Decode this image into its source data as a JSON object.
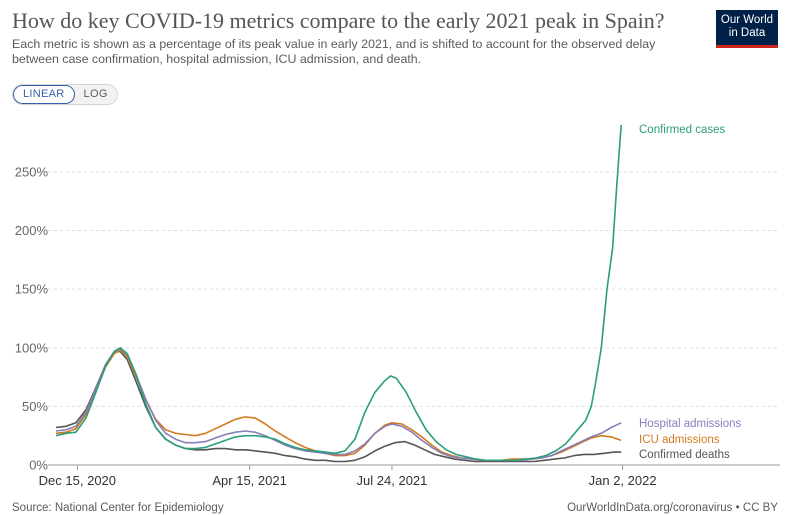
{
  "header": {
    "title": "How do key COVID-19 metrics compare to the early 2021 peak in Spain?",
    "subtitle": "Each metric is shown as a percentage of its peak value in early 2021, and is shifted to account for the observed delay between case confirmation, hospital admission, ICU admission, and death."
  },
  "logo": {
    "line1": "Our World",
    "line2": "in Data"
  },
  "scale_toggle": {
    "linear_label": "LINEAR",
    "log_label": "LOG",
    "selected": "LINEAR"
  },
  "footer": {
    "source": "Source: National Center for Epidemiology",
    "credit": "OurWorldInData.org/coronavirus • CC BY"
  },
  "colors": {
    "confirmed_cases": "#2b9e7a",
    "hospital_admissions": "#8a7dbb",
    "icu_admissions": "#d37a1f",
    "confirmed_deaths": "#555555",
    "gridline": "#dddddd"
  },
  "chart_data": {
    "type": "line",
    "y_unit": "%",
    "ylim": [
      0,
      290
    ],
    "y_ticks": [
      0,
      50,
      100,
      150,
      200,
      250
    ],
    "y_tick_labels": [
      "0%",
      "50%",
      "100%",
      "150%",
      "200%",
      "250%"
    ],
    "x_ticks": [
      "2020-12-15",
      "2021-04-15",
      "2021-07-24",
      "2022-01-02"
    ],
    "x_tick_labels": [
      "Dec 15, 2020",
      "Apr 15, 2021",
      "Jul 24, 2021",
      "Jan 2, 2022"
    ],
    "xlim": [
      "2020-11-30",
      "2022-01-10"
    ],
    "grid": "horizontal",
    "legend": "line-end labels",
    "series": [
      {
        "name": "Confirmed cases",
        "key": "confirmed_cases",
        "points": [
          [
            "2020-11-30",
            25
          ],
          [
            "2020-12-07",
            27
          ],
          [
            "2020-12-14",
            28
          ],
          [
            "2020-12-21",
            40
          ],
          [
            "2020-12-28",
            62
          ],
          [
            "2021-01-04",
            85
          ],
          [
            "2021-01-10",
            97
          ],
          [
            "2021-01-14",
            100
          ],
          [
            "2021-01-19",
            95
          ],
          [
            "2021-01-25",
            78
          ],
          [
            "2021-02-01",
            52
          ],
          [
            "2021-02-08",
            32
          ],
          [
            "2021-02-15",
            22
          ],
          [
            "2021-02-22",
            17
          ],
          [
            "2021-03-01",
            14
          ],
          [
            "2021-03-08",
            14
          ],
          [
            "2021-03-15",
            15
          ],
          [
            "2021-03-22",
            18
          ],
          [
            "2021-03-29",
            21
          ],
          [
            "2021-04-05",
            24
          ],
          [
            "2021-04-12",
            25
          ],
          [
            "2021-04-19",
            25
          ],
          [
            "2021-04-26",
            24
          ],
          [
            "2021-05-03",
            22
          ],
          [
            "2021-05-10",
            18
          ],
          [
            "2021-05-17",
            15
          ],
          [
            "2021-05-24",
            13
          ],
          [
            "2021-05-31",
            12
          ],
          [
            "2021-06-07",
            11
          ],
          [
            "2021-06-14",
            10
          ],
          [
            "2021-06-21",
            12
          ],
          [
            "2021-06-28",
            22
          ],
          [
            "2021-07-05",
            45
          ],
          [
            "2021-07-12",
            62
          ],
          [
            "2021-07-19",
            72
          ],
          [
            "2021-07-23",
            76
          ],
          [
            "2021-07-27",
            74
          ],
          [
            "2021-08-03",
            62
          ],
          [
            "2021-08-10",
            45
          ],
          [
            "2021-08-17",
            30
          ],
          [
            "2021-08-24",
            20
          ],
          [
            "2021-08-31",
            13
          ],
          [
            "2021-09-07",
            9
          ],
          [
            "2021-09-14",
            7
          ],
          [
            "2021-09-21",
            5
          ],
          [
            "2021-09-28",
            4
          ],
          [
            "2021-10-05",
            4
          ],
          [
            "2021-10-12",
            4
          ],
          [
            "2021-10-19",
            4
          ],
          [
            "2021-10-26",
            5
          ],
          [
            "2021-11-02",
            6
          ],
          [
            "2021-11-09",
            8
          ],
          [
            "2021-11-16",
            12
          ],
          [
            "2021-11-23",
            18
          ],
          [
            "2021-11-30",
            28
          ],
          [
            "2021-12-07",
            38
          ],
          [
            "2021-12-11",
            50
          ],
          [
            "2021-12-14",
            70
          ],
          [
            "2021-12-18",
            100
          ],
          [
            "2021-12-22",
            150
          ],
          [
            "2021-12-26",
            185
          ],
          [
            "2021-12-29",
            240
          ],
          [
            "2022-01-01",
            290
          ]
        ]
      },
      {
        "name": "Hospital admissions",
        "key": "hospital_admissions",
        "points": [
          [
            "2020-11-30",
            29
          ],
          [
            "2020-12-07",
            30
          ],
          [
            "2020-12-14",
            33
          ],
          [
            "2020-12-21",
            45
          ],
          [
            "2020-12-28",
            65
          ],
          [
            "2021-01-04",
            86
          ],
          [
            "2021-01-10",
            97
          ],
          [
            "2021-01-14",
            99
          ],
          [
            "2021-01-19",
            94
          ],
          [
            "2021-01-25",
            78
          ],
          [
            "2021-02-01",
            56
          ],
          [
            "2021-02-08",
            38
          ],
          [
            "2021-02-15",
            27
          ],
          [
            "2021-02-22",
            22
          ],
          [
            "2021-03-01",
            19
          ],
          [
            "2021-03-08",
            19
          ],
          [
            "2021-03-15",
            20
          ],
          [
            "2021-03-22",
            23
          ],
          [
            "2021-03-29",
            26
          ],
          [
            "2021-04-05",
            28
          ],
          [
            "2021-04-12",
            29
          ],
          [
            "2021-04-19",
            28
          ],
          [
            "2021-04-26",
            25
          ],
          [
            "2021-05-03",
            21
          ],
          [
            "2021-05-10",
            17
          ],
          [
            "2021-05-17",
            14
          ],
          [
            "2021-05-24",
            12
          ],
          [
            "2021-05-31",
            11
          ],
          [
            "2021-06-07",
            10
          ],
          [
            "2021-06-14",
            9
          ],
          [
            "2021-06-21",
            9
          ],
          [
            "2021-06-28",
            12
          ],
          [
            "2021-07-05",
            18
          ],
          [
            "2021-07-12",
            27
          ],
          [
            "2021-07-19",
            33
          ],
          [
            "2021-07-24",
            35
          ],
          [
            "2021-07-31",
            33
          ],
          [
            "2021-08-07",
            28
          ],
          [
            "2021-08-14",
            21
          ],
          [
            "2021-08-21",
            15
          ],
          [
            "2021-08-28",
            10
          ],
          [
            "2021-09-04",
            7
          ],
          [
            "2021-09-11",
            6
          ],
          [
            "2021-09-18",
            5
          ],
          [
            "2021-09-25",
            4
          ],
          [
            "2021-10-02",
            4
          ],
          [
            "2021-10-09",
            4
          ],
          [
            "2021-10-16",
            4
          ],
          [
            "2021-10-23",
            4
          ],
          [
            "2021-10-30",
            5
          ],
          [
            "2021-11-06",
            6
          ],
          [
            "2021-11-13",
            8
          ],
          [
            "2021-11-20",
            12
          ],
          [
            "2021-11-27",
            16
          ],
          [
            "2021-12-04",
            20
          ],
          [
            "2021-12-11",
            24
          ],
          [
            "2021-12-18",
            27
          ],
          [
            "2021-12-25",
            32
          ],
          [
            "2022-01-01",
            36
          ]
        ]
      },
      {
        "name": "ICU admissions",
        "key": "icu_admissions",
        "points": [
          [
            "2020-11-30",
            27
          ],
          [
            "2020-12-07",
            28
          ],
          [
            "2020-12-14",
            31
          ],
          [
            "2020-12-21",
            43
          ],
          [
            "2020-12-28",
            63
          ],
          [
            "2021-01-04",
            84
          ],
          [
            "2021-01-10",
            95
          ],
          [
            "2021-01-14",
            98
          ],
          [
            "2021-01-19",
            92
          ],
          [
            "2021-01-25",
            76
          ],
          [
            "2021-02-01",
            56
          ],
          [
            "2021-02-08",
            39
          ],
          [
            "2021-02-15",
            30
          ],
          [
            "2021-02-22",
            27
          ],
          [
            "2021-03-01",
            26
          ],
          [
            "2021-03-08",
            25
          ],
          [
            "2021-03-15",
            27
          ],
          [
            "2021-03-22",
            31
          ],
          [
            "2021-03-29",
            35
          ],
          [
            "2021-04-05",
            39
          ],
          [
            "2021-04-12",
            41
          ],
          [
            "2021-04-19",
            40
          ],
          [
            "2021-04-26",
            35
          ],
          [
            "2021-05-03",
            29
          ],
          [
            "2021-05-10",
            24
          ],
          [
            "2021-05-17",
            19
          ],
          [
            "2021-05-24",
            15
          ],
          [
            "2021-05-31",
            12
          ],
          [
            "2021-06-07",
            10
          ],
          [
            "2021-06-14",
            8
          ],
          [
            "2021-06-21",
            8
          ],
          [
            "2021-06-28",
            10
          ],
          [
            "2021-07-05",
            17
          ],
          [
            "2021-07-12",
            27
          ],
          [
            "2021-07-19",
            34
          ],
          [
            "2021-07-24",
            36
          ],
          [
            "2021-07-31",
            35
          ],
          [
            "2021-08-07",
            30
          ],
          [
            "2021-08-14",
            24
          ],
          [
            "2021-08-21",
            17
          ],
          [
            "2021-08-28",
            11
          ],
          [
            "2021-09-04",
            8
          ],
          [
            "2021-09-11",
            6
          ],
          [
            "2021-09-18",
            5
          ],
          [
            "2021-09-25",
            4
          ],
          [
            "2021-10-02",
            4
          ],
          [
            "2021-10-09",
            4
          ],
          [
            "2021-10-16",
            5
          ],
          [
            "2021-10-23",
            5
          ],
          [
            "2021-10-30",
            5
          ],
          [
            "2021-11-06",
            6
          ],
          [
            "2021-11-13",
            8
          ],
          [
            "2021-11-20",
            11
          ],
          [
            "2021-11-27",
            15
          ],
          [
            "2021-12-04",
            19
          ],
          [
            "2021-12-11",
            23
          ],
          [
            "2021-12-18",
            25
          ],
          [
            "2021-12-25",
            24
          ],
          [
            "2022-01-01",
            21
          ]
        ]
      },
      {
        "name": "Confirmed deaths",
        "key": "confirmed_deaths",
        "points": [
          [
            "2020-11-30",
            32
          ],
          [
            "2020-12-07",
            33
          ],
          [
            "2020-12-14",
            36
          ],
          [
            "2020-12-21",
            47
          ],
          [
            "2020-12-28",
            66
          ],
          [
            "2021-01-04",
            86
          ],
          [
            "2021-01-10",
            96
          ],
          [
            "2021-01-14",
            97
          ],
          [
            "2021-01-19",
            90
          ],
          [
            "2021-01-25",
            72
          ],
          [
            "2021-02-01",
            50
          ],
          [
            "2021-02-08",
            32
          ],
          [
            "2021-02-15",
            22
          ],
          [
            "2021-02-22",
            17
          ],
          [
            "2021-03-01",
            14
          ],
          [
            "2021-03-08",
            13
          ],
          [
            "2021-03-15",
            13
          ],
          [
            "2021-03-22",
            14
          ],
          [
            "2021-03-29",
            14
          ],
          [
            "2021-04-05",
            13
          ],
          [
            "2021-04-12",
            13
          ],
          [
            "2021-04-19",
            12
          ],
          [
            "2021-04-26",
            11
          ],
          [
            "2021-05-03",
            10
          ],
          [
            "2021-05-10",
            8
          ],
          [
            "2021-05-17",
            7
          ],
          [
            "2021-05-24",
            5
          ],
          [
            "2021-05-31",
            4
          ],
          [
            "2021-06-07",
            4
          ],
          [
            "2021-06-14",
            3
          ],
          [
            "2021-06-21",
            3
          ],
          [
            "2021-06-28",
            4
          ],
          [
            "2021-07-05",
            7
          ],
          [
            "2021-07-12",
            12
          ],
          [
            "2021-07-19",
            16
          ],
          [
            "2021-07-26",
            19
          ],
          [
            "2021-08-02",
            20
          ],
          [
            "2021-08-09",
            17
          ],
          [
            "2021-08-16",
            13
          ],
          [
            "2021-08-23",
            9
          ],
          [
            "2021-08-30",
            7
          ],
          [
            "2021-09-06",
            5
          ],
          [
            "2021-09-13",
            4
          ],
          [
            "2021-09-20",
            3
          ],
          [
            "2021-09-27",
            3
          ],
          [
            "2021-10-04",
            3
          ],
          [
            "2021-10-11",
            3
          ],
          [
            "2021-10-18",
            3
          ],
          [
            "2021-10-25",
            3
          ],
          [
            "2021-11-01",
            3
          ],
          [
            "2021-11-08",
            4
          ],
          [
            "2021-11-15",
            5
          ],
          [
            "2021-11-22",
            6
          ],
          [
            "2021-11-29",
            8
          ],
          [
            "2021-12-06",
            9
          ],
          [
            "2021-12-13",
            9
          ],
          [
            "2021-12-20",
            10
          ],
          [
            "2021-12-27",
            11
          ],
          [
            "2022-01-01",
            11
          ]
        ]
      }
    ]
  }
}
